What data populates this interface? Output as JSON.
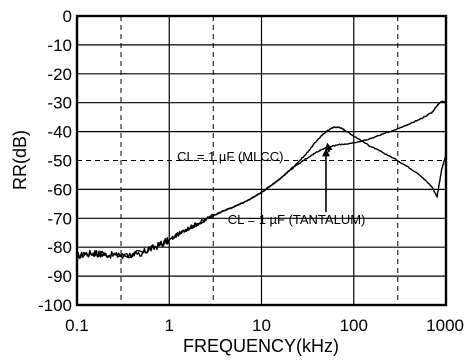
{
  "chart_data": {
    "type": "line",
    "title": "",
    "xlabel": "FREQUENCY(kHz)",
    "ylabel": "RR(dB)",
    "x_scale": "log",
    "xlim": [
      0.1,
      1000
    ],
    "ylim": [
      -100,
      0
    ],
    "x_ticks": [
      0.1,
      1,
      10,
      100,
      1000
    ],
    "x_tick_labels": [
      "0.1",
      "1",
      "10",
      "100",
      "1000"
    ],
    "y_ticks": [
      0,
      -10,
      -20,
      -30,
      -40,
      -50,
      -60,
      -70,
      -80,
      -90,
      -100
    ],
    "y_tick_labels": [
      "0",
      "-10",
      "-20",
      "-30",
      "-40",
      "-50",
      "-60",
      "-70",
      "-80",
      "-90",
      "-100"
    ],
    "grid": "horizontal solid; vertical dashed at 0.3, 3, 300 kHz; dashed reference at -50 dB",
    "series": [
      {
        "name": "CL = 1 µF (MLCC)",
        "x": [
          0.1,
          0.15,
          0.2,
          0.3,
          0.5,
          0.7,
          1,
          1.5,
          2,
          3,
          5,
          7,
          10,
          15,
          20,
          30,
          40,
          50,
          60,
          70,
          80,
          100,
          150,
          200,
          300,
          500,
          700,
          800,
          900,
          1000
        ],
        "y": [
          -83,
          -82,
          -82.5,
          -83,
          -82,
          -80,
          -77.5,
          -74,
          -72,
          -69,
          -66,
          -64,
          -61,
          -57,
          -53.5,
          -48,
          -43,
          -40,
          -38.5,
          -38.5,
          -39.5,
          -41.5,
          -45,
          -47,
          -50,
          -54.5,
          -59,
          -62.5,
          -53,
          -48
        ]
      },
      {
        "name": "CL = 1 µF (TANTALUM)",
        "x": [
          0.1,
          0.15,
          0.2,
          0.3,
          0.5,
          0.7,
          1,
          1.5,
          2,
          3,
          5,
          7,
          10,
          15,
          20,
          30,
          40,
          50,
          70,
          100,
          150,
          200,
          300,
          500,
          700,
          800,
          900,
          1000
        ],
        "y": [
          -83,
          -82,
          -82.5,
          -83,
          -82,
          -80,
          -77.5,
          -74,
          -72,
          -69,
          -66,
          -64,
          -61,
          -57,
          -53.5,
          -49.5,
          -47,
          -45.5,
          -44.5,
          -44,
          -42.5,
          -41,
          -39,
          -36,
          -33.5,
          -31,
          -29.5,
          -30
        ]
      }
    ],
    "annotations": [
      {
        "text": "CL = 1 µF (MLCC)",
        "x": 3.3,
        "y": -48.5
      },
      {
        "text": "CL = 1 µF (TANTALUM)",
        "x": 45,
        "y": -72
      }
    ]
  }
}
